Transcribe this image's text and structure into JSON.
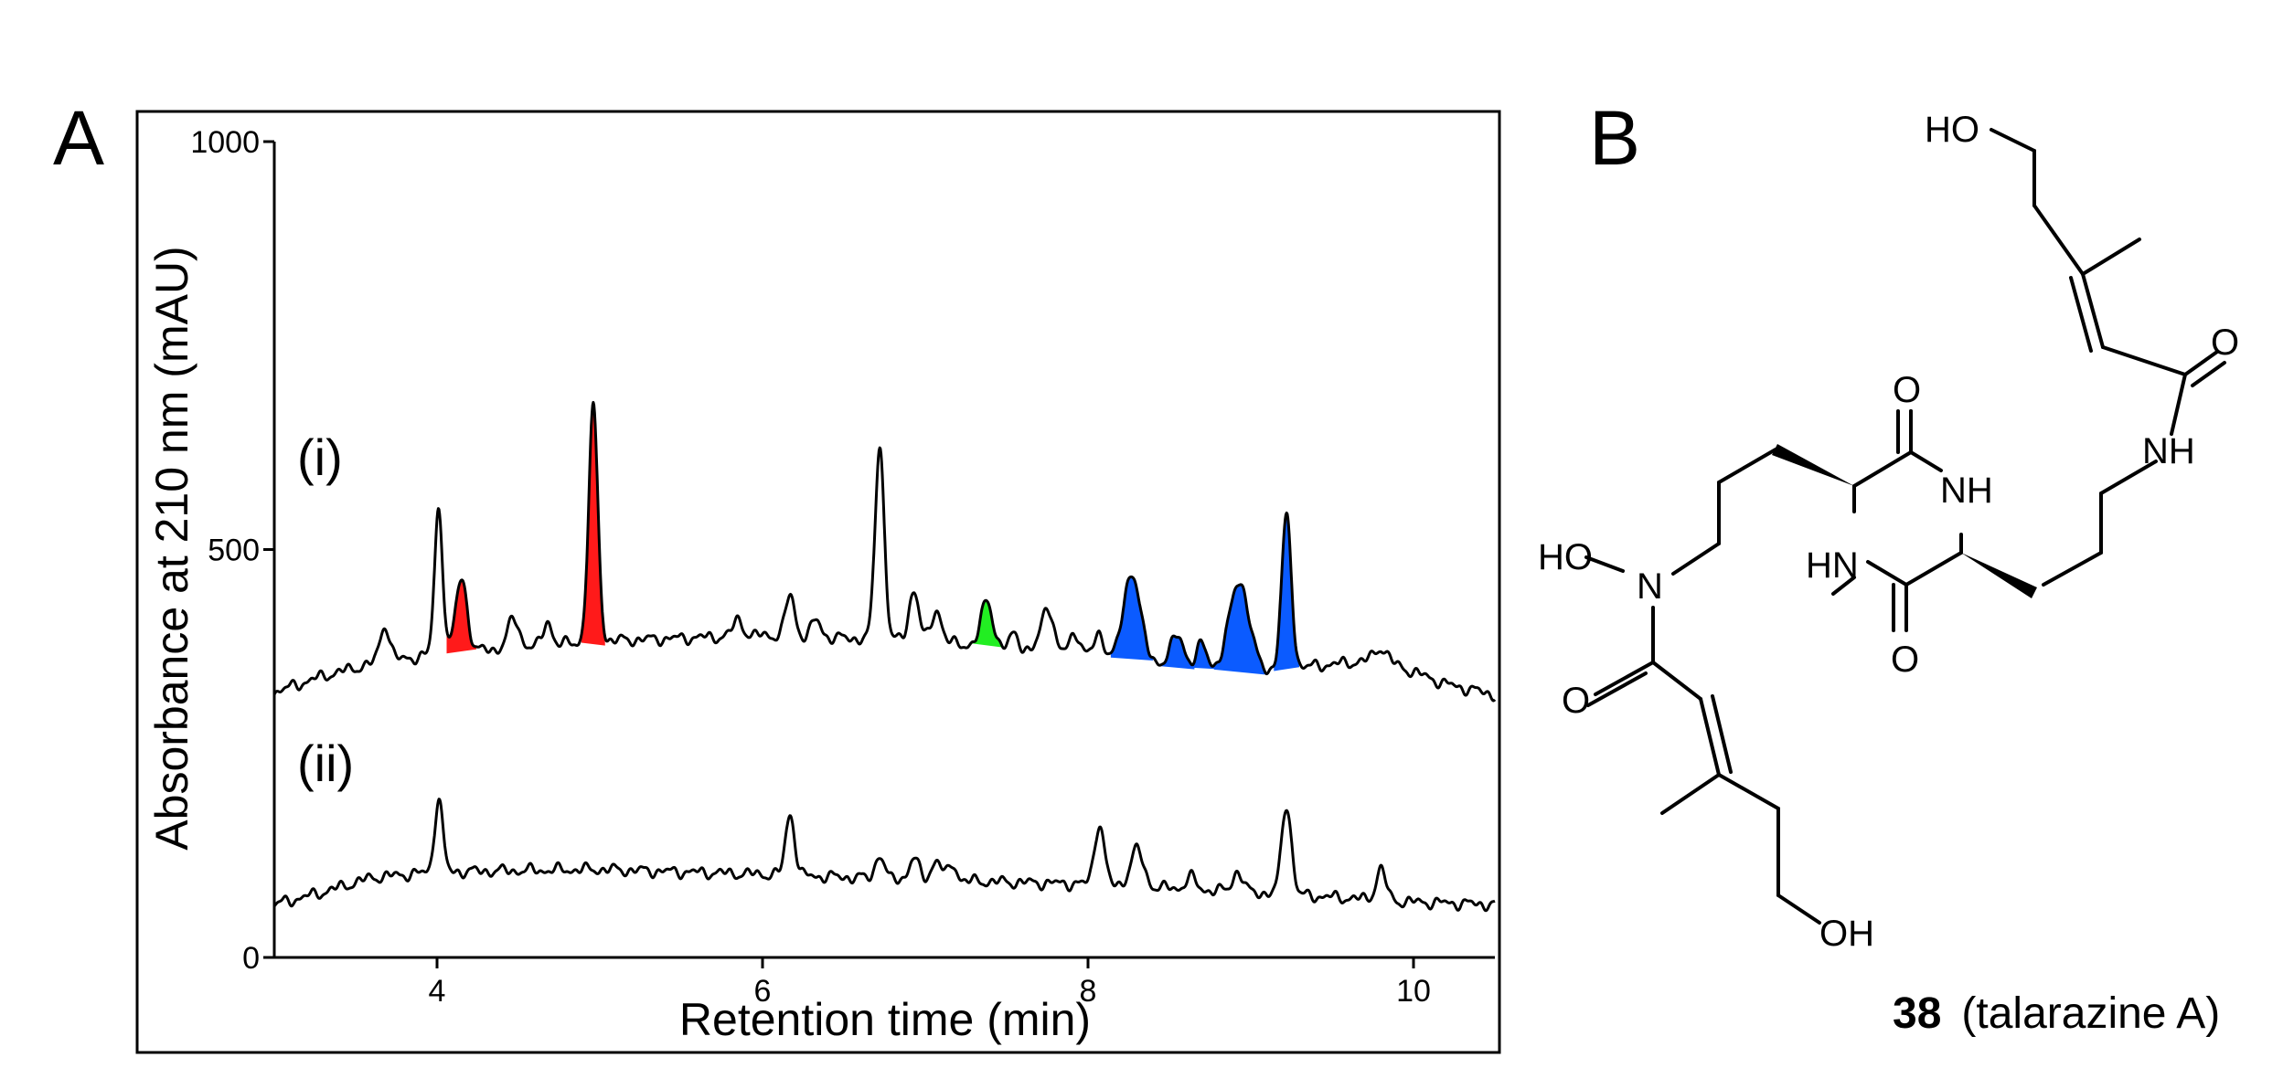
{
  "panel_a": {
    "letter": "A"
  },
  "panel_b": {
    "letter": "B",
    "compound_number": "38",
    "compound_name": "(talarazine A)",
    "atoms": {
      "ho_top": "HO",
      "o_amide_right": "O",
      "nh_amide_right": "NH",
      "o_ring_top": "O",
      "nh_ring": "NH",
      "hn_ring": "HN",
      "o_ring_bottom": "O",
      "ho_n": "HO",
      "n_hydroxamate": "N",
      "o_amide_left": "O",
      "oh_bottom": "OH"
    }
  },
  "chart_data": {
    "type": "line",
    "xlabel": "Retention time (min)",
    "ylabel": "Absorbance at 210 nm (mAU)",
    "xlim": [
      3.0,
      10.5
    ],
    "ylim": [
      0,
      1000
    ],
    "x_ticks": [
      4,
      6,
      8,
      10
    ],
    "y_ticks": [
      0,
      500,
      1000
    ],
    "grid": false,
    "series": [
      {
        "name": "(i)",
        "baseline": [
          [
            3.0,
            325
          ],
          [
            3.3,
            345
          ],
          [
            3.6,
            360
          ],
          [
            4.0,
            372
          ],
          [
            5.0,
            388
          ],
          [
            6.0,
            395
          ],
          [
            7.0,
            388
          ],
          [
            8.0,
            370
          ],
          [
            9.0,
            350
          ],
          [
            9.8,
            365
          ],
          [
            10.2,
            335
          ],
          [
            10.5,
            322
          ]
        ],
        "peaks": [
          {
            "rt": 3.68,
            "height": 45,
            "width": 0.03
          },
          {
            "rt": 4.01,
            "height": 178,
            "width": 0.025
          },
          {
            "rt": 4.15,
            "height": 90,
            "width": 0.035,
            "highlight": "red"
          },
          {
            "rt": 4.47,
            "height": 35,
            "width": 0.035
          },
          {
            "rt": 4.68,
            "height": 30,
            "width": 0.025
          },
          {
            "rt": 4.96,
            "height": 285,
            "width": 0.028,
            "highlight": "red"
          },
          {
            "rt": 5.85,
            "height": 20,
            "width": 0.03
          },
          {
            "rt": 6.17,
            "height": 50,
            "width": 0.028
          },
          {
            "rt": 6.33,
            "height": 20,
            "width": 0.03
          },
          {
            "rt": 6.72,
            "height": 237,
            "width": 0.028
          },
          {
            "rt": 6.93,
            "height": 62,
            "width": 0.03
          },
          {
            "rt": 7.07,
            "height": 40,
            "width": 0.03
          },
          {
            "rt": 7.38,
            "height": 57,
            "width": 0.035,
            "highlight": "green"
          },
          {
            "rt": 7.55,
            "height": 20,
            "width": 0.025
          },
          {
            "rt": 7.75,
            "height": 58,
            "width": 0.035
          },
          {
            "rt": 7.92,
            "height": 28,
            "width": 0.03
          },
          {
            "rt": 8.07,
            "height": 28,
            "width": 0.03
          },
          {
            "rt": 8.27,
            "height": 108,
            "width": 0.05,
            "highlight": "blue"
          },
          {
            "rt": 8.55,
            "height": 35,
            "width": 0.04,
            "highlight": "blue"
          },
          {
            "rt": 8.7,
            "height": 27,
            "width": 0.03,
            "highlight": "blue"
          },
          {
            "rt": 8.93,
            "height": 110,
            "width": 0.06,
            "highlight": "blue"
          },
          {
            "rt": 9.22,
            "height": 185,
            "width": 0.03,
            "highlight": "blue"
          },
          {
            "rt": 9.8,
            "height": 15,
            "width": 0.04
          }
        ]
      },
      {
        "name": "(ii)",
        "baseline": [
          [
            3.0,
            65
          ],
          [
            3.3,
            80
          ],
          [
            3.6,
            98
          ],
          [
            4.0,
            105
          ],
          [
            5.0,
            108
          ],
          [
            6.0,
            102
          ],
          [
            7.0,
            95
          ],
          [
            8.0,
            90
          ],
          [
            9.0,
            80
          ],
          [
            10.0,
            68
          ],
          [
            10.5,
            65
          ]
        ],
        "peaks": [
          {
            "rt": 4.01,
            "height": 90,
            "width": 0.025
          },
          {
            "rt": 6.17,
            "height": 75,
            "width": 0.028
          },
          {
            "rt": 6.72,
            "height": 30,
            "width": 0.025
          },
          {
            "rt": 6.93,
            "height": 25,
            "width": 0.03
          },
          {
            "rt": 7.07,
            "height": 25,
            "width": 0.03
          },
          {
            "rt": 7.17,
            "height": 20,
            "width": 0.025
          },
          {
            "rt": 8.07,
            "height": 75,
            "width": 0.03
          },
          {
            "rt": 8.3,
            "height": 45,
            "width": 0.04
          },
          {
            "rt": 8.63,
            "height": 15,
            "width": 0.03
          },
          {
            "rt": 8.92,
            "height": 25,
            "width": 0.03
          },
          {
            "rt": 9.22,
            "height": 110,
            "width": 0.03
          },
          {
            "rt": 9.8,
            "height": 38,
            "width": 0.03
          }
        ]
      }
    ],
    "highlight_colors": {
      "red": "#ff1a1a",
      "green": "#22ee22",
      "blue": "#0b5bff"
    }
  }
}
